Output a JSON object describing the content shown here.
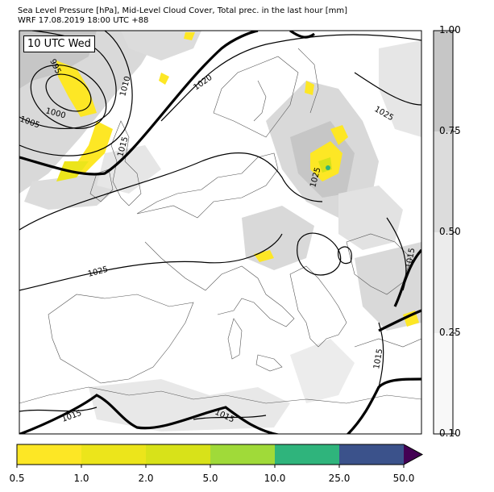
{
  "header": {
    "line1": "Sea Level Pressure [hPa], Mid-Level Cloud Cover, Total prec. in the last hour [mm]",
    "line2": "WRF 17.08.2019 18:00 UTC +88"
  },
  "map": {
    "time_label": "10 UTC Wed",
    "isobar_labels": [
      "995",
      "1000",
      "1005",
      "1010",
      "1015",
      "1020",
      "1025",
      "1025",
      "1025",
      "1015",
      "1015",
      "1015",
      "1015",
      "1020"
    ]
  },
  "cloud_cover_legend": {
    "ticks": [
      "1.00",
      "0.75",
      "0.50",
      "0.25",
      "0.10"
    ],
    "colors": [
      "#c6c6c6",
      "#dcdcdc",
      "#ececec",
      "#f8f8f8"
    ]
  },
  "precip_legend": {
    "ticks": [
      "0.5",
      "1.0",
      "2.0",
      "5.0",
      "10.0",
      "25.0",
      "50.0"
    ],
    "colors": [
      "#fde725",
      "#ece51b",
      "#d8e219",
      "#a0da39",
      "#2fb47c",
      "#3b528b",
      "#440154"
    ]
  }
}
